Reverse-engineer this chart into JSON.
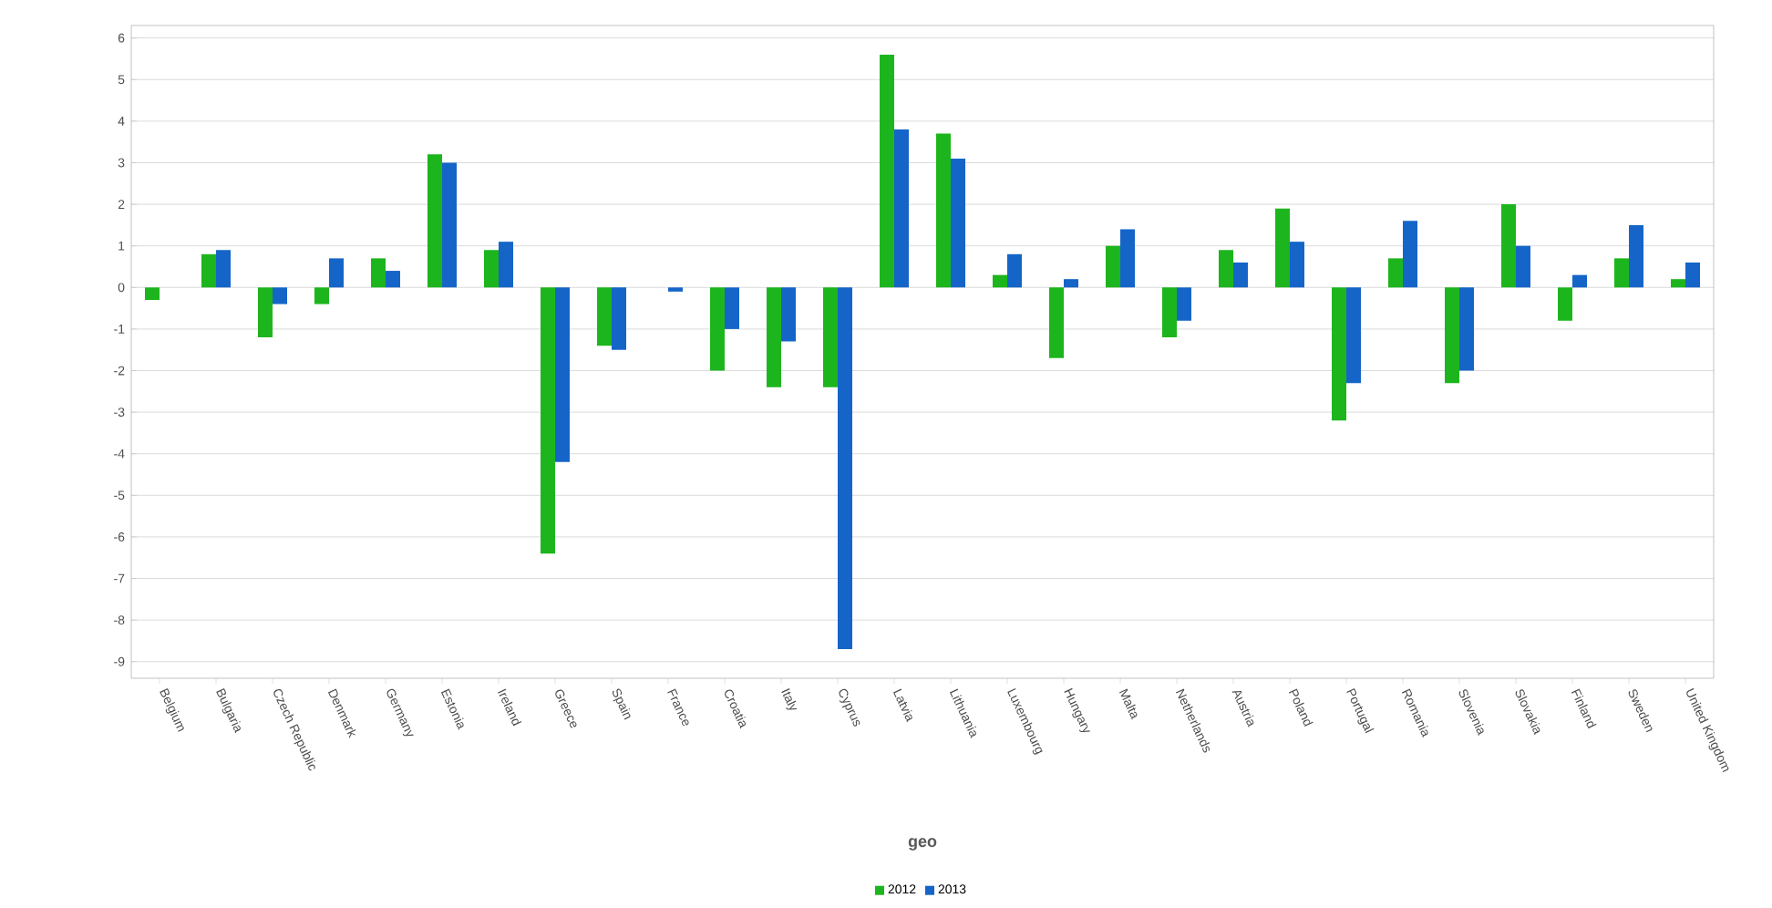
{
  "chart_data": {
    "type": "bar",
    "xlabel": "geo",
    "categories": [
      "Belgium",
      "Bulgaria",
      "Czech Republic",
      "Denmark",
      "Germany",
      "Estonia",
      "Ireland",
      "Greece",
      "Spain",
      "France",
      "Croatia",
      "Italy",
      "Cyprus",
      "Latvia",
      "Lithuania",
      "Luxembourg",
      "Hungary",
      "Malta",
      "Netherlands",
      "Austria",
      "Poland",
      "Portugal",
      "Romania",
      "Slovenia",
      "Slovakia",
      "Finland",
      "Sweden",
      "United Kingdom"
    ],
    "series": [
      {
        "name": "2012",
        "color": "#1db51d",
        "values": [
          -0.3,
          0.8,
          -1.2,
          -0.4,
          0.7,
          3.2,
          0.9,
          -6.4,
          -1.4,
          null,
          -2.0,
          -2.4,
          -2.4,
          5.6,
          3.7,
          0.3,
          -1.7,
          1.0,
          -1.2,
          0.9,
          1.9,
          -3.2,
          0.7,
          -2.3,
          2.0,
          -0.8,
          0.7,
          0.2
        ]
      },
      {
        "name": "2013",
        "color": "#1565c8",
        "values": [
          null,
          0.9,
          -0.4,
          0.7,
          0.4,
          3.0,
          1.1,
          -4.2,
          -1.5,
          -0.1,
          -1.0,
          -1.3,
          -8.7,
          3.8,
          3.1,
          0.8,
          0.2,
          1.4,
          -0.8,
          0.6,
          1.1,
          -2.3,
          1.6,
          -2.0,
          1.0,
          0.3,
          1.5,
          0.6
        ]
      }
    ],
    "ylim": [
      -9.4,
      6.3
    ],
    "yticks": [
      -9,
      -8,
      -7,
      -6,
      -5,
      -4,
      -3,
      -2,
      -1,
      0,
      1,
      2,
      3,
      4,
      5,
      6
    ],
    "grid": "y",
    "legend": "bottom"
  }
}
